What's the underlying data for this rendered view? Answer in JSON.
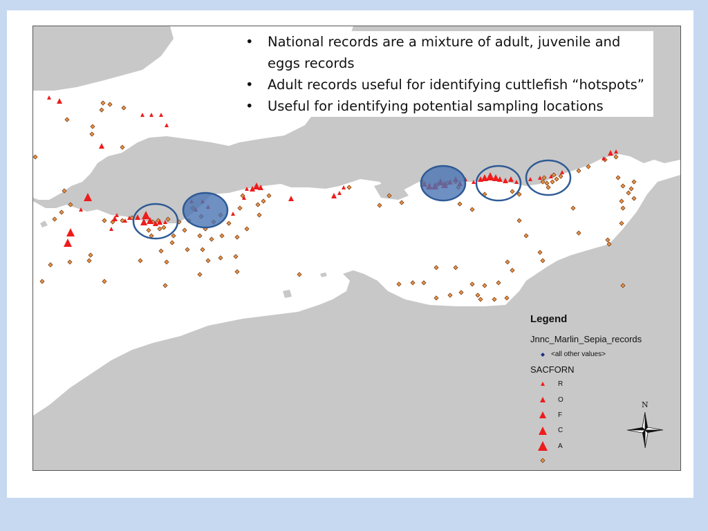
{
  "bullets": [
    "National records are a mixture of adult, juvenile and eggs records",
    "Adult records useful for identifying cuttlefish “hotspots”",
    "Useful for identifying potential sampling locations"
  ],
  "legend": {
    "title": "Legend",
    "layer1": "Jnnc_Marlin_Sepia_records",
    "layer1_item": "<all other values>",
    "layer2": "SACFORN",
    "classes": [
      "R",
      "O",
      "F",
      "C",
      "A"
    ]
  },
  "north_label": "N",
  "colors": {
    "background": "#c6d9f1",
    "land": "#c8c8c8",
    "sea": "#ffffff",
    "record_triangle": "#ee1c1c",
    "record_diamond": "#e8944a",
    "hotspot_fill": "#4a74b4",
    "hotspot_stroke": "#2e5a95"
  },
  "icons": [
    "north-arrow-icon",
    "triangle-symbol-icon",
    "diamond-symbol-icon",
    "hotspot-circle"
  ]
}
